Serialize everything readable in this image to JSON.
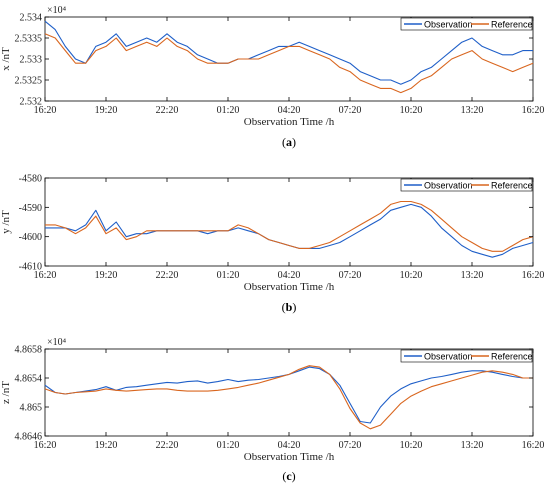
{
  "figure": {
    "panels": [
      {
        "caption": "(a)",
        "caption_letter": "a",
        "exponent_label": "×10⁴",
        "chart_data": {
          "type": "line",
          "xlabel": "Observation Time /h",
          "ylabel": "x /nT",
          "xticks": [
            "16:20",
            "19:20",
            "22:20",
            "01:20",
            "04:20",
            "07:20",
            "10:20",
            "13:20",
            "16:20"
          ],
          "ylim": [
            2.532,
            2.534
          ],
          "yticks": [
            2.532,
            2.5325,
            2.533,
            2.5335,
            2.534
          ],
          "ytick_labels": [
            "2.532",
            "2.5325",
            "2.533",
            "2.5335",
            "2.534"
          ],
          "legend": "top-right",
          "grid": false,
          "colors": {
            "Observation": "#1f5fc8",
            "Reference": "#d9661f"
          },
          "series": [
            {
              "name": "Observation",
              "x": [
                0,
                0.5,
                1,
                1.5,
                2,
                2.5,
                3,
                3.5,
                4,
                4.5,
                5,
                5.5,
                6,
                6.5,
                7,
                7.5,
                8,
                8.5,
                9,
                9.5,
                10,
                10.5,
                11,
                11.5,
                12,
                12.5,
                13,
                13.5,
                14,
                14.5,
                15,
                15.5,
                16,
                16.5,
                17,
                17.5,
                18,
                18.5,
                19,
                19.5,
                20,
                20.5,
                21,
                21.5,
                22,
                22.5,
                23,
                23.5,
                24
              ],
              "values": [
                2.5339,
                2.5337,
                2.5333,
                2.533,
                2.5329,
                2.5333,
                2.5334,
                2.5336,
                2.5333,
                2.5334,
                2.5335,
                2.5334,
                2.5336,
                2.5334,
                2.5333,
                2.5331,
                2.533,
                2.5329,
                2.5329,
                2.533,
                2.533,
                2.5331,
                2.5332,
                2.5333,
                2.5333,
                2.5334,
                2.5333,
                2.5332,
                2.5331,
                2.533,
                2.5329,
                2.5327,
                2.5326,
                2.5325,
                2.5325,
                2.5324,
                2.5325,
                2.5327,
                2.5328,
                2.533,
                2.5332,
                2.5334,
                2.5335,
                2.5333,
                2.5332,
                2.5331,
                2.5331,
                2.5332,
                2.5332
              ]
            },
            {
              "name": "Reference",
              "x": [
                0,
                0.5,
                1,
                1.5,
                2,
                2.5,
                3,
                3.5,
                4,
                4.5,
                5,
                5.5,
                6,
                6.5,
                7,
                7.5,
                8,
                8.5,
                9,
                9.5,
                10,
                10.5,
                11,
                11.5,
                12,
                12.5,
                13,
                13.5,
                14,
                14.5,
                15,
                15.5,
                16,
                16.5,
                17,
                17.5,
                18,
                18.5,
                19,
                19.5,
                20,
                20.5,
                21,
                21.5,
                22,
                22.5,
                23,
                23.5,
                24
              ],
              "values": [
                2.5336,
                2.5335,
                2.5332,
                2.5329,
                2.5329,
                2.5332,
                2.5333,
                2.5335,
                2.5332,
                2.5333,
                2.5334,
                2.5333,
                2.5335,
                2.5333,
                2.5332,
                2.533,
                2.5329,
                2.5329,
                2.5329,
                2.533,
                2.533,
                2.533,
                2.5331,
                2.5332,
                2.5333,
                2.5333,
                2.5332,
                2.5331,
                2.533,
                2.5328,
                2.5327,
                2.5325,
                2.5324,
                2.5323,
                2.5323,
                2.5322,
                2.5323,
                2.5325,
                2.5326,
                2.5328,
                2.533,
                2.5331,
                2.5332,
                2.533,
                2.5329,
                2.5328,
                2.5327,
                2.5328,
                2.5329
              ]
            }
          ]
        }
      },
      {
        "caption": "(b)",
        "caption_letter": "b",
        "exponent_label": "",
        "chart_data": {
          "type": "line",
          "xlabel": "Observation Time /h",
          "ylabel": "y /nT",
          "xticks": [
            "16:20",
            "19:20",
            "22:20",
            "01:20",
            "04:20",
            "07:20",
            "10:20",
            "13:20",
            "16:20"
          ],
          "ylim": [
            -4610,
            -4580
          ],
          "yticks": [
            -4610,
            -4600,
            -4590,
            -4580
          ],
          "ytick_labels": [
            "-4610",
            "-4600",
            "-4590",
            "-4580"
          ],
          "legend": "top-right",
          "grid": false,
          "colors": {
            "Observation": "#1f5fc8",
            "Reference": "#d9661f"
          },
          "series": [
            {
              "name": "Observation",
              "x": [
                0,
                0.5,
                1,
                1.5,
                2,
                2.5,
                3,
                3.5,
                4,
                4.5,
                5,
                5.5,
                6,
                6.5,
                7,
                7.5,
                8,
                8.5,
                9,
                9.5,
                10,
                10.5,
                11,
                11.5,
                12,
                12.5,
                13,
                13.5,
                14,
                14.5,
                15,
                15.5,
                16,
                16.5,
                17,
                17.5,
                18,
                18.5,
                19,
                19.5,
                20,
                20.5,
                21,
                21.5,
                22,
                22.5,
                23,
                23.5,
                24
              ],
              "values": [
                -4597,
                -4597,
                -4597,
                -4598,
                -4596,
                -4591,
                -4598,
                -4595,
                -4600,
                -4599,
                -4599,
                -4598,
                -4598,
                -4598,
                -4598,
                -4598,
                -4599,
                -4598,
                -4598,
                -4597,
                -4598,
                -4599,
                -4601,
                -4602,
                -4603,
                -4604,
                -4604,
                -4604,
                -4603,
                -4602,
                -4600,
                -4598,
                -4596,
                -4594,
                -4591,
                -4590,
                -4589,
                -4590,
                -4593,
                -4597,
                -4600,
                -4603,
                -4605,
                -4606,
                -4607,
                -4606,
                -4604,
                -4603,
                -4602
              ]
            },
            {
              "name": "Reference",
              "x": [
                0,
                0.5,
                1,
                1.5,
                2,
                2.5,
                3,
                3.5,
                4,
                4.5,
                5,
                5.5,
                6,
                6.5,
                7,
                7.5,
                8,
                8.5,
                9,
                9.5,
                10,
                10.5,
                11,
                11.5,
                12,
                12.5,
                13,
                13.5,
                14,
                14.5,
                15,
                15.5,
                16,
                16.5,
                17,
                17.5,
                18,
                18.5,
                19,
                19.5,
                20,
                20.5,
                21,
                21.5,
                22,
                22.5,
                23,
                23.5,
                24
              ],
              "values": [
                -4596,
                -4596,
                -4597,
                -4599,
                -4597,
                -4593,
                -4599,
                -4597,
                -4601,
                -4600,
                -4598,
                -4598,
                -4598,
                -4598,
                -4598,
                -4598,
                -4598,
                -4598,
                -4598,
                -4596,
                -4597,
                -4599,
                -4601,
                -4602,
                -4603,
                -4604,
                -4604,
                -4603,
                -4602,
                -4600,
                -4598,
                -4596,
                -4594,
                -4592,
                -4589,
                -4588,
                -4588,
                -4589,
                -4591,
                -4594,
                -4597,
                -4600,
                -4602,
                -4604,
                -4605,
                -4605,
                -4603,
                -4601,
                -4600
              ]
            }
          ]
        }
      },
      {
        "caption": "(c)",
        "caption_letter": "c",
        "exponent_label": "×10⁴",
        "chart_data": {
          "type": "line",
          "xlabel": "Observation Time /h",
          "ylabel": "z /nT",
          "xticks": [
            "16:20",
            "19:20",
            "22:20",
            "01:20",
            "04:20",
            "07:20",
            "10:20",
            "13:20",
            "16:20"
          ],
          "ylim": [
            4.8646,
            4.8658
          ],
          "yticks": [
            4.8646,
            4.865,
            4.8654,
            4.8658
          ],
          "ytick_labels": [
            "4.8646",
            "4.865",
            "4.8654",
            "4.8658"
          ],
          "legend": "top-right",
          "grid": false,
          "colors": {
            "Observation": "#1f5fc8",
            "Reference": "#d9661f"
          },
          "series": [
            {
              "name": "Observation",
              "x": [
                0,
                0.5,
                1,
                1.5,
                2,
                2.5,
                3,
                3.5,
                4,
                4.5,
                5,
                5.5,
                6,
                6.5,
                7,
                7.5,
                8,
                8.5,
                9,
                9.5,
                10,
                10.5,
                11,
                11.5,
                12,
                12.5,
                13,
                13.5,
                14,
                14.5,
                15,
                15.5,
                16,
                16.5,
                17,
                17.5,
                18,
                18.5,
                19,
                19.5,
                20,
                20.5,
                21,
                21.5,
                22,
                22.5,
                23,
                23.5,
                24
              ],
              "values": [
                4.8653,
                4.8652,
                4.86518,
                4.8652,
                4.86522,
                4.86524,
                4.86528,
                4.86523,
                4.86527,
                4.86528,
                4.8653,
                4.86532,
                4.86534,
                4.86533,
                4.86535,
                4.86536,
                4.86533,
                4.86535,
                4.86538,
                4.86535,
                4.86537,
                4.86538,
                4.8654,
                4.86542,
                4.86545,
                4.8655,
                4.86555,
                4.86553,
                4.86545,
                4.8653,
                4.86505,
                4.8648,
                4.86478,
                4.865,
                4.86515,
                4.86525,
                4.86532,
                4.86536,
                4.8654,
                4.86542,
                4.86545,
                4.86548,
                4.8655,
                4.8655,
                4.86548,
                4.86545,
                4.86542,
                4.8654,
                4.8654
              ]
            },
            {
              "name": "Reference",
              "x": [
                0,
                0.5,
                1,
                1.5,
                2,
                2.5,
                3,
                3.5,
                4,
                4.5,
                5,
                5.5,
                6,
                6.5,
                7,
                7.5,
                8,
                8.5,
                9,
                9.5,
                10,
                10.5,
                11,
                11.5,
                12,
                12.5,
                13,
                13.5,
                14,
                14.5,
                15,
                15.5,
                16,
                16.5,
                17,
                17.5,
                18,
                18.5,
                19,
                19.5,
                20,
                20.5,
                21,
                21.5,
                22,
                22.5,
                23,
                23.5,
                24
              ],
              "values": [
                4.86525,
                4.8652,
                4.86518,
                4.8652,
                4.86521,
                4.86522,
                4.86525,
                4.86523,
                4.86522,
                4.86523,
                4.86524,
                4.86525,
                4.86525,
                4.86523,
                4.86522,
                4.86522,
                4.86522,
                4.86523,
                4.86525,
                4.86527,
                4.8653,
                4.86533,
                4.86537,
                4.86541,
                4.86545,
                4.86552,
                4.86557,
                4.86555,
                4.86545,
                4.86525,
                4.86498,
                4.86478,
                4.8647,
                4.86475,
                4.8649,
                4.86505,
                4.86515,
                4.86522,
                4.86528,
                4.86532,
                4.86536,
                4.8654,
                4.86544,
                4.86548,
                4.8655,
                4.86548,
                4.86545,
                4.8654,
                4.8654
              ]
            }
          ]
        }
      }
    ]
  }
}
